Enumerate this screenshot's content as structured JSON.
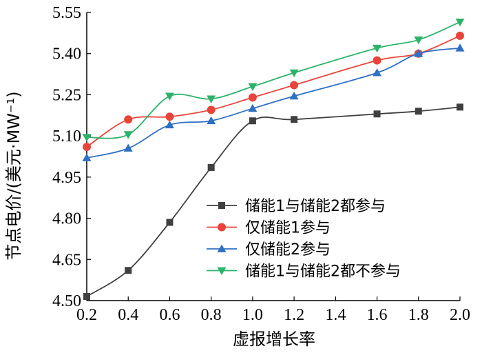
{
  "chart_data": {
    "type": "line",
    "title": "",
    "xlabel": "虚报增长率",
    "ylabel": "节点电价/(美元·MW⁻¹)",
    "x": [
      0.2,
      0.4,
      0.6,
      0.8,
      1.0,
      1.2,
      1.6,
      1.8,
      2.0
    ],
    "x_ticks": [
      "0.2",
      "0.4",
      "0.6",
      "0.8",
      "1.0",
      "1.2",
      "1.4",
      "1.6",
      "1.8",
      "2.0"
    ],
    "y_ticks": [
      "4.50",
      "4.65",
      "4.80",
      "4.95",
      "5.10",
      "5.25",
      "5.40",
      "5.55"
    ],
    "xlim": [
      0.2,
      2.0
    ],
    "ylim": [
      4.5,
      5.55
    ],
    "grid": false,
    "legend_position": "lower-right",
    "series": [
      {
        "name": "储能1与储能2都参与",
        "color": "#404040",
        "marker": "square",
        "values": [
          4.515,
          4.61,
          4.785,
          4.985,
          5.155,
          5.16,
          5.18,
          5.19,
          5.205
        ]
      },
      {
        "name": "仅储能1参与",
        "color": "#e8443a",
        "marker": "circle",
        "values": [
          5.06,
          5.16,
          5.17,
          5.195,
          5.24,
          5.285,
          5.375,
          5.4,
          5.465
        ]
      },
      {
        "name": "仅储能2参与",
        "color": "#2f6fc4",
        "marker": "triangle-up",
        "values": [
          5.02,
          5.055,
          5.14,
          5.155,
          5.2,
          5.245,
          5.33,
          5.4,
          5.42
        ]
      },
      {
        "name": "储能1与储能2都不参与",
        "color": "#2cb36a",
        "marker": "triangle-down",
        "values": [
          5.095,
          5.105,
          5.245,
          5.235,
          5.28,
          5.33,
          5.42,
          5.45,
          5.515
        ]
      }
    ]
  }
}
